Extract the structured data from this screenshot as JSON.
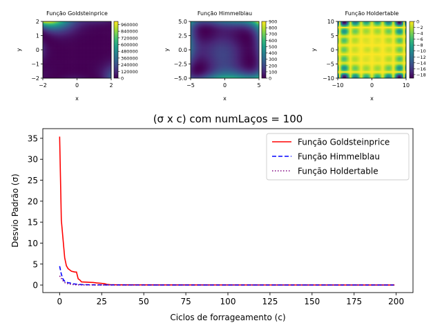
{
  "chart_data": [
    {
      "type": "heatmap",
      "title": "Função Goldsteinprice",
      "xlabel": "x",
      "ylabel": "y",
      "xlim": [
        -2,
        2
      ],
      "ylim": [
        -2,
        2
      ],
      "xticks": [
        "−2",
        "0",
        "2"
      ],
      "yticks": [
        "2",
        "1",
        "0",
        "−1",
        "−2"
      ],
      "colorbar_ticks": [
        "960000",
        "840000",
        "720000",
        "600000",
        "480000",
        "360000",
        "240000",
        "120000",
        "0"
      ],
      "colorbar_range": [
        0,
        1015000
      ],
      "colormap": "viridis"
    },
    {
      "type": "heatmap",
      "title": "Função Himmelblau",
      "xlabel": "x",
      "ylabel": "y",
      "xlim": [
        -5,
        5
      ],
      "ylim": [
        -5,
        5
      ],
      "xticks": [
        "−5",
        "0",
        "5"
      ],
      "yticks": [
        "5.0",
        "2.5",
        "0.0",
        "−2.5",
        "−5.0"
      ],
      "colorbar_ticks": [
        "900",
        "800",
        "700",
        "600",
        "500",
        "400",
        "300",
        "200",
        "100",
        "0"
      ],
      "colorbar_range": [
        0,
        900
      ],
      "colormap": "viridis"
    },
    {
      "type": "heatmap",
      "title": "Função Holdertable",
      "xlabel": "x",
      "ylabel": "y",
      "xlim": [
        -10,
        10
      ],
      "ylim": [
        -10,
        10
      ],
      "xticks": [
        "−10",
        "0",
        "10"
      ],
      "yticks": [
        "10",
        "5",
        "0",
        "−5",
        "−10"
      ],
      "colorbar_ticks": [
        "0",
        "−2",
        "−4",
        "−6",
        "−8",
        "−10",
        "−12",
        "−14",
        "−16",
        "−18"
      ],
      "colorbar_range": [
        -19.2,
        0
      ],
      "colormap": "viridis"
    },
    {
      "type": "line",
      "title": "(σ x c) com numLaços = 100",
      "xlabel": "Ciclos de forrageamento (c)",
      "ylabel": "Desvio Padrão (σ)",
      "xlim": [
        -10,
        210
      ],
      "ylim": [
        -1.8,
        37.3
      ],
      "xticks": [
        "0",
        "25",
        "50",
        "75",
        "100",
        "125",
        "150",
        "175",
        "200"
      ],
      "yticks": [
        "0",
        "5",
        "10",
        "15",
        "20",
        "25",
        "30",
        "35"
      ],
      "legend_position": "top-right",
      "series": [
        {
          "name": "Função Goldsteinprice",
          "color": "#ff0000",
          "style": "solid",
          "points": [
            [
              0,
              35.4
            ],
            [
              1,
              15.5
            ],
            [
              2,
              11
            ],
            [
              3,
              6.5
            ],
            [
              4,
              4.6
            ],
            [
              5,
              3.9
            ],
            [
              6,
              3.6
            ],
            [
              7,
              3.3
            ],
            [
              8,
              3.2
            ],
            [
              9,
              3.1
            ],
            [
              10,
              3.1
            ],
            [
              11,
              1.5
            ],
            [
              12,
              1.2
            ],
            [
              13,
              0.75
            ],
            [
              15,
              0.7
            ],
            [
              20,
              0.6
            ],
            [
              22,
              0.5
            ],
            [
              25,
              0.4
            ],
            [
              27,
              0.3
            ],
            [
              28,
              0.15
            ],
            [
              30,
              0.08
            ],
            [
              35,
              0.04
            ],
            [
              60,
              0.02
            ],
            [
              199,
              0.01
            ]
          ]
        },
        {
          "name": "Função Himmelblau",
          "color": "#0000ff",
          "style": "dashed",
          "points": [
            [
              0,
              4.5
            ],
            [
              1,
              2.6
            ],
            [
              2,
              1.4
            ],
            [
              3,
              0.9
            ],
            [
              4,
              0.7
            ],
            [
              5,
              0.55
            ],
            [
              6,
              0.5
            ],
            [
              7,
              0.4
            ],
            [
              8,
              0.3
            ],
            [
              10,
              0.2
            ],
            [
              12,
              0.12
            ],
            [
              15,
              0.08
            ],
            [
              20,
              0.05
            ],
            [
              30,
              0.02
            ],
            [
              60,
              0.01
            ],
            [
              199,
              0.0
            ]
          ]
        },
        {
          "name": "Função Holdertable",
          "color": "#800080",
          "style": "dotted",
          "points": [
            [
              0,
              2.2
            ],
            [
              1,
              1.6
            ],
            [
              2,
              1.0
            ],
            [
              3,
              0.6
            ],
            [
              4,
              0.4
            ],
            [
              5,
              0.3
            ],
            [
              6,
              0.2
            ],
            [
              8,
              0.1
            ],
            [
              10,
              0.05
            ],
            [
              15,
              0.02
            ],
            [
              30,
              0.0
            ],
            [
              199,
              0.0
            ]
          ]
        }
      ]
    }
  ]
}
